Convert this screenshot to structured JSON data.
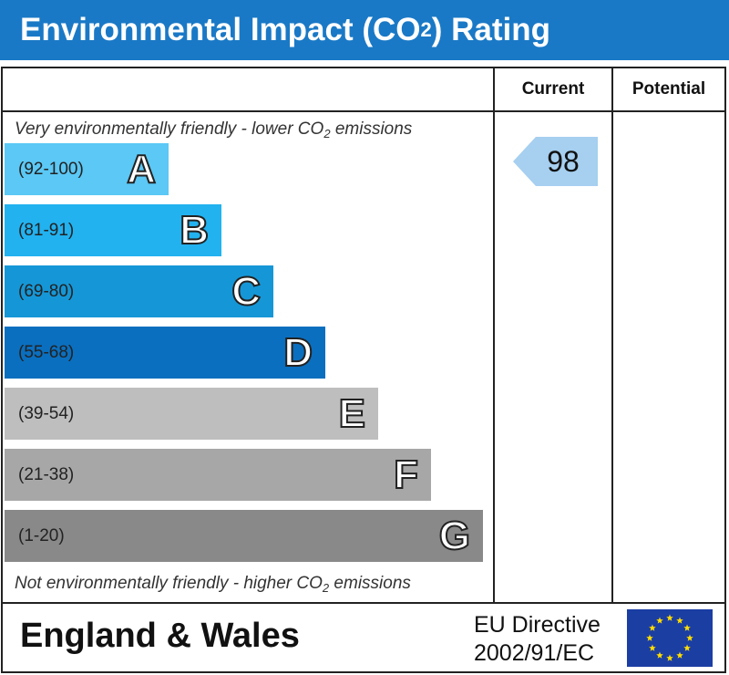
{
  "header": {
    "title_prefix": "Environmental Impact (CO",
    "title_sub": "2",
    "title_suffix": ") Rating"
  },
  "columns": {
    "current": "Current",
    "potential": "Potential"
  },
  "notes": {
    "top_prefix": "Very environmentally friendly - lower CO",
    "top_sub": "2",
    "top_suffix": " emissions",
    "bottom_prefix": "Not environmentally friendly - higher CO",
    "bottom_sub": "2",
    "bottom_suffix": " emissions"
  },
  "chart_data": {
    "type": "bar",
    "categories": [
      "A",
      "B",
      "C",
      "D",
      "E",
      "F",
      "G"
    ],
    "ranges": [
      "(92-100)",
      "(81-91)",
      "(69-80)",
      "(55-68)",
      "(39-54)",
      "(21-38)",
      "(1-20)"
    ],
    "colors": [
      "#5bc8f5",
      "#22b2f0",
      "#1597d7",
      "#0a6fbf",
      "#bebebe",
      "#a7a7a7",
      "#898989"
    ],
    "current_rating": 98,
    "current_color": "#a6cff0",
    "potential_rating": null
  },
  "footer": {
    "region": "England & Wales",
    "directive_line1": "EU Directive",
    "directive_line2": "2002/91/EC",
    "flag_colors": {
      "field": "#1b3ea3",
      "stars": "#ffdd00"
    }
  }
}
